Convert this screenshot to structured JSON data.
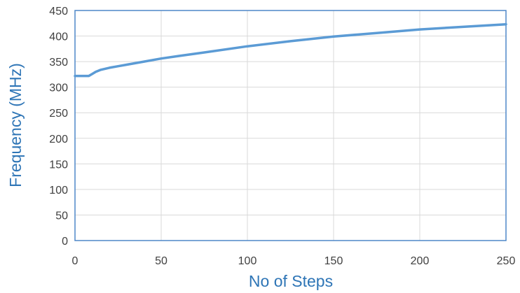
{
  "chart_data": {
    "type": "line",
    "title": "",
    "xlabel": "No of Steps",
    "ylabel": "Frequency (MHz)",
    "xlim": [
      0,
      250
    ],
    "ylim": [
      0,
      450
    ],
    "x_ticks": [
      "0",
      "50",
      "100",
      "150",
      "200",
      "250"
    ],
    "y_ticks": [
      "0",
      "50",
      "100",
      "150",
      "200",
      "250",
      "300",
      "350",
      "400",
      "450"
    ],
    "grid": true,
    "legend": "none",
    "series": [
      {
        "color": "#5B9BD5",
        "x": [
          0,
          8,
          10,
          12,
          15,
          20,
          25,
          30,
          40,
          50,
          60,
          75,
          100,
          125,
          150,
          175,
          200,
          225,
          250
        ],
        "y": [
          322,
          322,
          326,
          330,
          334,
          338,
          341,
          344,
          350,
          356,
          361,
          368,
          380,
          390,
          399,
          406,
          413,
          418,
          423
        ]
      }
    ]
  }
}
